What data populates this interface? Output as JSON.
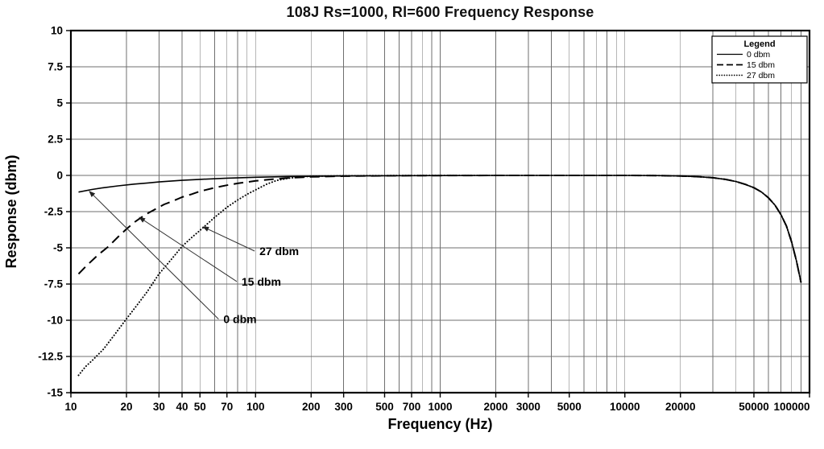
{
  "chart_data": {
    "type": "line",
    "title": "108J Rs=1000, Rl=600 Frequency Response",
    "xlabel": "Frequency (Hz)",
    "ylabel": "Response (dbm)",
    "x_scale": "log",
    "xlim": [
      10,
      100000
    ],
    "ylim": [
      -15,
      10
    ],
    "grid": "on",
    "line_color": "#000000",
    "grid_color": "#6f6f6f",
    "x_tick_values": [
      10,
      20,
      30,
      40,
      50,
      70,
      100,
      200,
      300,
      500,
      700,
      1000,
      2000,
      3000,
      5000,
      10000,
      20000,
      50000,
      100000
    ],
    "x_tick_labels": [
      "10",
      "20",
      "30",
      "40",
      "50",
      "70",
      "100",
      "200",
      "300",
      "500",
      "700",
      "1000",
      "2000",
      "3000",
      "5000",
      "10000",
      "20000",
      "50000",
      "100000"
    ],
    "y_tick_values": [
      10,
      7.5,
      5,
      2.5,
      0,
      -2.5,
      -5,
      -7.5,
      -10,
      -12.5,
      -15
    ],
    "y_tick_labels": [
      "10",
      "7.5",
      "5",
      "2.5",
      "0",
      "-2.5",
      "-5",
      "-7.5",
      "-10",
      "-12.5",
      "-15"
    ],
    "legend": {
      "title": "Legend",
      "position": "top-right",
      "entries": [
        {
          "label": "0 dbm",
          "line_style": "solid"
        },
        {
          "label": "15 dbm",
          "line_style": "dashed"
        },
        {
          "label": "27 dbm",
          "line_style": "dotted"
        }
      ]
    },
    "series": [
      {
        "name": "0 dbm",
        "line_style": "solid",
        "color": "#000000",
        "points": [
          [
            11,
            -1.15
          ],
          [
            13,
            -0.97
          ],
          [
            15,
            -0.85
          ],
          [
            18,
            -0.72
          ],
          [
            22,
            -0.6
          ],
          [
            26,
            -0.52
          ],
          [
            30,
            -0.45
          ],
          [
            40,
            -0.34
          ],
          [
            50,
            -0.27
          ],
          [
            70,
            -0.19
          ],
          [
            100,
            -0.13
          ],
          [
            150,
            -0.08
          ],
          [
            200,
            -0.06
          ],
          [
            300,
            -0.04
          ],
          [
            500,
            -0.02
          ],
          [
            1000,
            -0.01
          ],
          [
            2000,
            0
          ],
          [
            5000,
            0
          ],
          [
            10000,
            0
          ],
          [
            15000,
            -0.01
          ],
          [
            20000,
            -0.04
          ],
          [
            25000,
            -0.09
          ],
          [
            30000,
            -0.16
          ],
          [
            35000,
            -0.27
          ],
          [
            40000,
            -0.42
          ],
          [
            45000,
            -0.62
          ],
          [
            50000,
            -0.85
          ],
          [
            55000,
            -1.15
          ],
          [
            60000,
            -1.55
          ],
          [
            65000,
            -2.05
          ],
          [
            70000,
            -2.7
          ],
          [
            75000,
            -3.5
          ],
          [
            80000,
            -4.6
          ],
          [
            85000,
            -5.9
          ],
          [
            90000,
            -7.4
          ]
        ]
      },
      {
        "name": "15 dbm",
        "line_style": "dashed",
        "color": "#000000",
        "points": [
          [
            11,
            -6.8
          ],
          [
            12,
            -6.3
          ],
          [
            14,
            -5.5
          ],
          [
            16,
            -4.9
          ],
          [
            18,
            -4.25
          ],
          [
            20,
            -3.7
          ],
          [
            22,
            -3.25
          ],
          [
            25,
            -2.75
          ],
          [
            28,
            -2.4
          ],
          [
            32,
            -2.0
          ],
          [
            36,
            -1.75
          ],
          [
            40,
            -1.5
          ],
          [
            45,
            -1.3
          ],
          [
            50,
            -1.1
          ],
          [
            60,
            -0.85
          ],
          [
            70,
            -0.68
          ],
          [
            80,
            -0.55
          ],
          [
            100,
            -0.38
          ],
          [
            120,
            -0.28
          ],
          [
            150,
            -0.18
          ],
          [
            200,
            -0.1
          ],
          [
            300,
            -0.05
          ],
          [
            500,
            -0.02
          ],
          [
            1000,
            -0.01
          ],
          [
            2000,
            0
          ],
          [
            5000,
            0
          ],
          [
            10000,
            0
          ],
          [
            15000,
            -0.01
          ],
          [
            20000,
            -0.04
          ],
          [
            25000,
            -0.09
          ],
          [
            30000,
            -0.16
          ],
          [
            35000,
            -0.27
          ],
          [
            40000,
            -0.42
          ],
          [
            45000,
            -0.62
          ],
          [
            50000,
            -0.85
          ],
          [
            55000,
            -1.15
          ],
          [
            60000,
            -1.55
          ],
          [
            65000,
            -2.05
          ],
          [
            70000,
            -2.7
          ],
          [
            75000,
            -3.5
          ],
          [
            80000,
            -4.6
          ],
          [
            85000,
            -5.9
          ],
          [
            90000,
            -7.4
          ]
        ]
      },
      {
        "name": "27 dbm",
        "line_style": "dotted",
        "color": "#000000",
        "points": [
          [
            11,
            -13.8
          ],
          [
            12,
            -13.2
          ],
          [
            13,
            -12.8
          ],
          [
            15,
            -12.0
          ],
          [
            17,
            -11.1
          ],
          [
            20,
            -9.9
          ],
          [
            23,
            -8.9
          ],
          [
            26,
            -8.0
          ],
          [
            30,
            -6.8
          ],
          [
            35,
            -5.8
          ],
          [
            40,
            -4.9
          ],
          [
            45,
            -4.3
          ],
          [
            50,
            -3.8
          ],
          [
            60,
            -2.9
          ],
          [
            70,
            -2.2
          ],
          [
            80,
            -1.7
          ],
          [
            90,
            -1.3
          ],
          [
            100,
            -1.0
          ],
          [
            115,
            -0.6
          ],
          [
            130,
            -0.35
          ],
          [
            150,
            -0.2
          ],
          [
            175,
            -0.1
          ],
          [
            200,
            -0.06
          ],
          [
            300,
            -0.02
          ],
          [
            500,
            -0.01
          ],
          [
            1000,
            0
          ],
          [
            2000,
            0
          ],
          [
            5000,
            0
          ],
          [
            10000,
            0
          ],
          [
            15000,
            -0.01
          ],
          [
            20000,
            -0.04
          ],
          [
            25000,
            -0.09
          ],
          [
            30000,
            -0.16
          ],
          [
            35000,
            -0.27
          ],
          [
            40000,
            -0.42
          ],
          [
            45000,
            -0.62
          ],
          [
            50000,
            -0.85
          ],
          [
            55000,
            -1.15
          ],
          [
            60000,
            -1.55
          ],
          [
            65000,
            -2.05
          ],
          [
            70000,
            -2.7
          ],
          [
            75000,
            -3.5
          ],
          [
            80000,
            -4.6
          ],
          [
            85000,
            -5.9
          ],
          [
            90000,
            -7.4
          ]
        ]
      }
    ],
    "annotations": [
      {
        "text": "27 dbm",
        "text_at": {
          "f": 105,
          "v": -5.5
        },
        "arrow_to": {
          "f": 52,
          "v": -3.55
        }
      },
      {
        "text": "15 dbm",
        "text_at": {
          "f": 84,
          "v": -7.6
        },
        "arrow_to": {
          "f": 23.5,
          "v": -2.9
        }
      },
      {
        "text": "0 dbm",
        "text_at": {
          "f": 67,
          "v": -10.2
        },
        "arrow_to": {
          "f": 12.6,
          "v": -1.1
        }
      }
    ]
  }
}
